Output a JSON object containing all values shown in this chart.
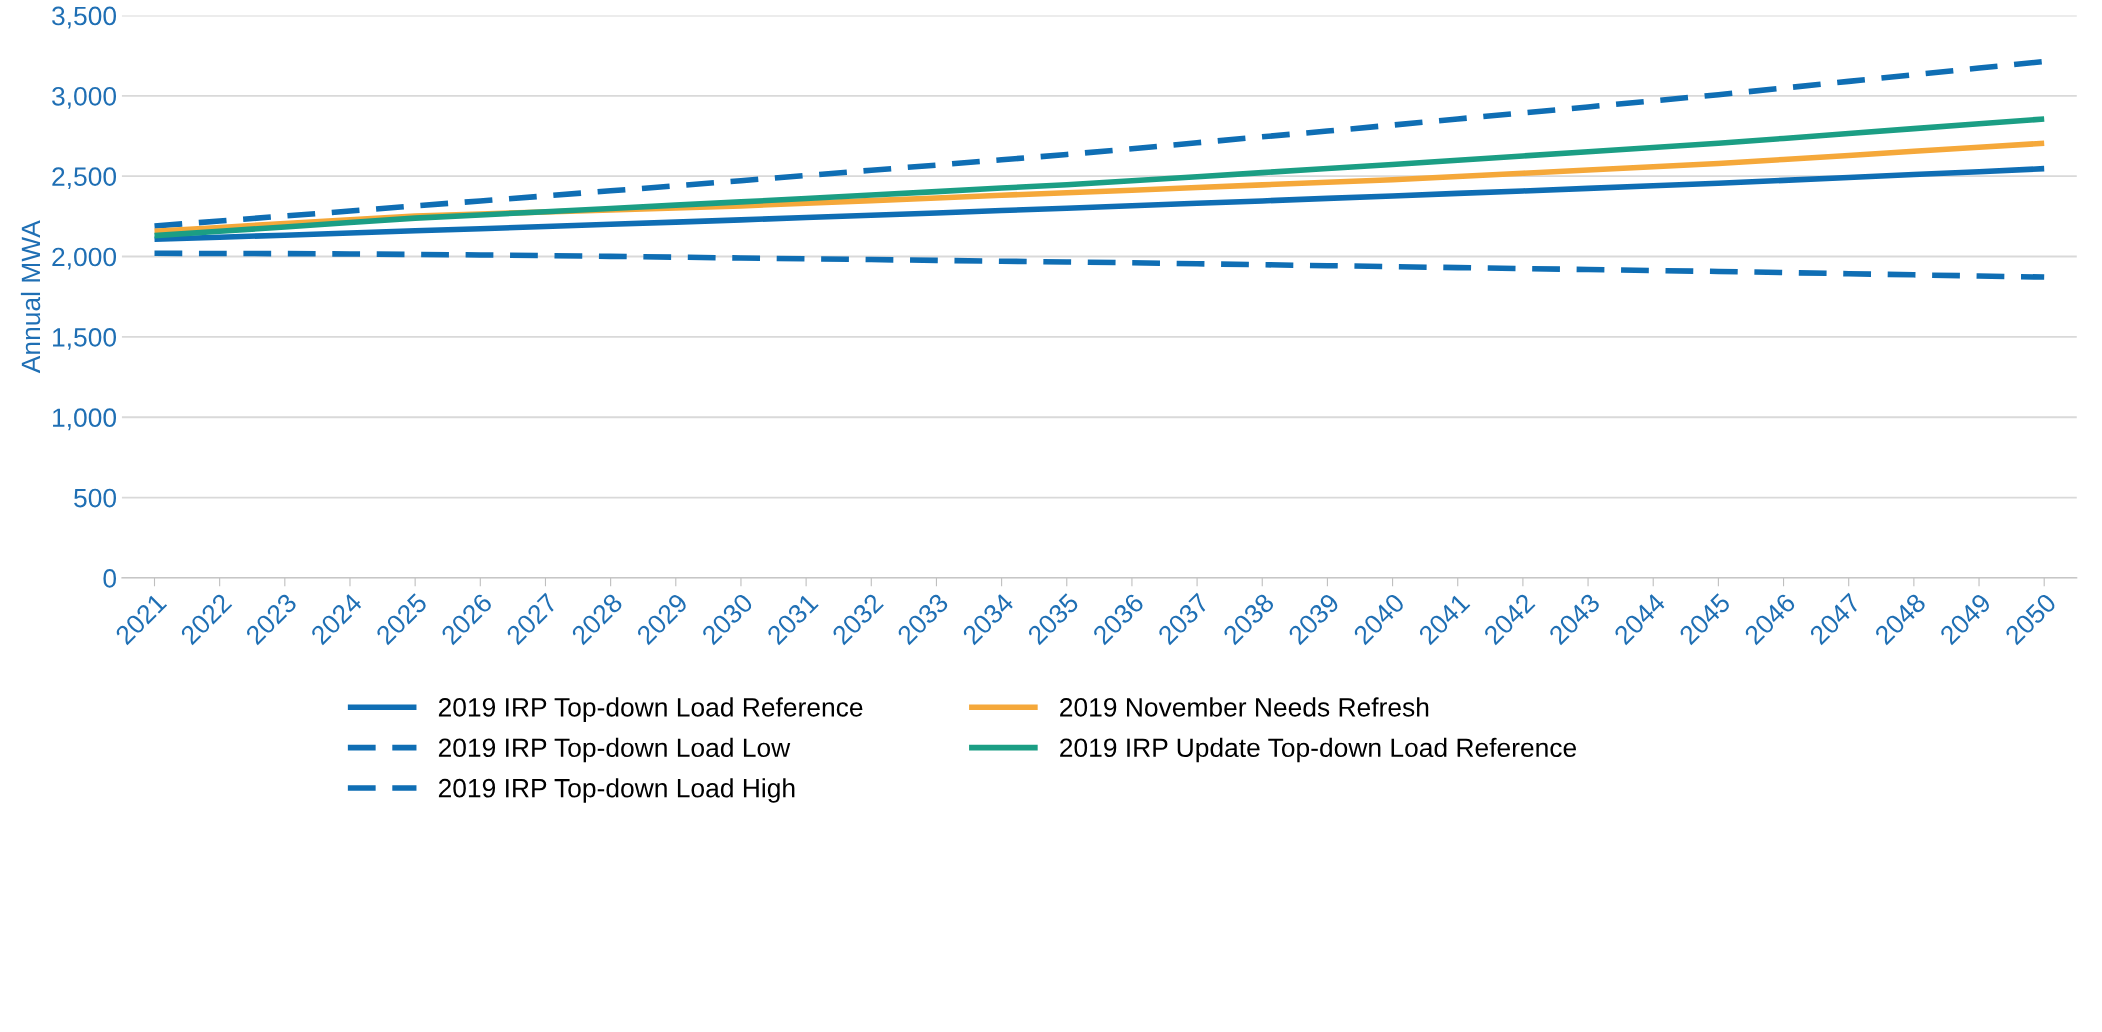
{
  "chart_data": {
    "type": "line",
    "ylabel": "Annual MWA",
    "categories": [
      "2021",
      "2022",
      "2023",
      "2024",
      "2025",
      "2026",
      "2027",
      "2028",
      "2029",
      "2030",
      "2031",
      "2032",
      "2033",
      "2034",
      "2035",
      "2036",
      "2037",
      "2038",
      "2039",
      "2040",
      "2041",
      "2042",
      "2043",
      "2044",
      "2045",
      "2046",
      "2047",
      "2048",
      "2049",
      "2050"
    ],
    "ylim": [
      0,
      3500
    ],
    "yticks": [
      {
        "value": 0,
        "label": "0"
      },
      {
        "value": 500,
        "label": "500"
      },
      {
        "value": 1000,
        "label": "1,000"
      },
      {
        "value": 1500,
        "label": "1,500"
      },
      {
        "value": 2000,
        "label": "2,000"
      },
      {
        "value": 2500,
        "label": "2,500"
      },
      {
        "value": 3000,
        "label": "3,000"
      },
      {
        "value": 3500,
        "label": "3,500"
      }
    ],
    "grid": "y",
    "legend": "bottom",
    "marker": "none",
    "series": [
      {
        "name": "2019 IRP Top-down Load Reference",
        "color": "#0f6eb4",
        "line_style": "solid",
        "values": [
          2107,
          2120,
          2133,
          2146,
          2160,
          2173,
          2187,
          2201,
          2214,
          2228,
          2243,
          2257,
          2271,
          2286,
          2301,
          2316,
          2331,
          2346,
          2362,
          2377,
          2393,
          2408,
          2424,
          2440,
          2456,
          2474,
          2492,
          2510,
          2528,
          2547
        ]
      },
      {
        "name": "2019 IRP Top-down Load Low",
        "color": "#0f6eb4",
        "line_style": "dashed",
        "values": [
          2020,
          2019,
          2018,
          2016,
          2013,
          2010,
          2006,
          2001,
          1996,
          1991,
          1986,
          1981,
          1976,
          1971,
          1966,
          1961,
          1955,
          1949,
          1943,
          1937,
          1931,
          1925,
          1919,
          1913,
          1907,
          1900,
          1893,
          1886,
          1879,
          1872
        ]
      },
      {
        "name": "2019 IRP Top-down Load High",
        "color": "#0f6eb4",
        "line_style": "dashed",
        "values": [
          2190,
          2221,
          2252,
          2283,
          2315,
          2346,
          2377,
          2409,
          2440,
          2472,
          2504,
          2537,
          2569,
          2602,
          2635,
          2671,
          2708,
          2745,
          2781,
          2818,
          2856,
          2894,
          2931,
          2969,
          3007,
          3048,
          3090,
          3131,
          3173,
          3214
        ]
      },
      {
        "name": "2019 November Needs Refresh",
        "color": "#f5a83a",
        "line_style": "solid",
        "values": [
          2157,
          2181,
          2205,
          2228,
          2252,
          2265,
          2277,
          2290,
          2302,
          2315,
          2331,
          2348,
          2364,
          2381,
          2397,
          2413,
          2429,
          2446,
          2462,
          2478,
          2498,
          2518,
          2539,
          2559,
          2579,
          2604,
          2629,
          2655,
          2680,
          2705
        ]
      },
      {
        "name": "2019 IRP Update Top-down Load Reference",
        "color": "#1b9e84",
        "line_style": "solid",
        "values": [
          2130,
          2157,
          2184,
          2212,
          2239,
          2259,
          2279,
          2299,
          2320,
          2340,
          2361,
          2383,
          2404,
          2426,
          2447,
          2472,
          2497,
          2522,
          2548,
          2573,
          2599,
          2626,
          2652,
          2679,
          2705,
          2735,
          2765,
          2796,
          2826,
          2856
        ]
      }
    ]
  }
}
